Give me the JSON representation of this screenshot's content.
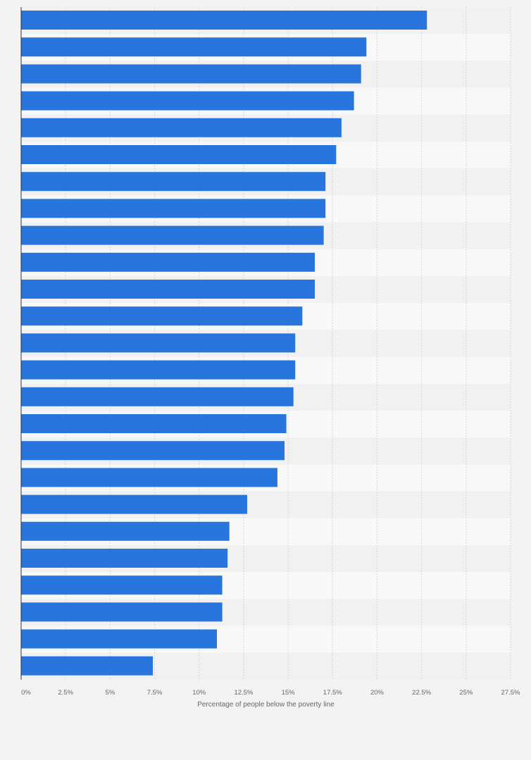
{
  "chart_data": {
    "type": "bar",
    "orientation": "horizontal",
    "values": [
      22.8,
      19.4,
      19.1,
      18.7,
      18.0,
      17.7,
      17.1,
      17.1,
      17.0,
      16.5,
      16.5,
      15.8,
      15.4,
      15.4,
      15.3,
      14.9,
      14.8,
      14.4,
      12.7,
      11.7,
      11.6,
      11.3,
      11.3,
      11.0,
      7.4
    ],
    "xlabel": "Percentage of people below the poverty line",
    "xlim": [
      0,
      27.5
    ],
    "xticks": [
      {
        "value": 0,
        "label": "0%"
      },
      {
        "value": 2.5,
        "label": "2.5%"
      },
      {
        "value": 5,
        "label": "5%"
      },
      {
        "value": 7.5,
        "label": "7.5%"
      },
      {
        "value": 10,
        "label": "10%"
      },
      {
        "value": 12.5,
        "label": "12.5%"
      },
      {
        "value": 15,
        "label": "15%"
      },
      {
        "value": 17.5,
        "label": "17.5%"
      },
      {
        "value": 20,
        "label": "20%"
      },
      {
        "value": 22.5,
        "label": "22.5%"
      },
      {
        "value": 25,
        "label": "25%"
      },
      {
        "value": 27.5,
        "label": "27.5%"
      }
    ],
    "grid": true,
    "colors": {
      "bar": "#2876dd",
      "band_dark": "#f1f1f1",
      "band_light": "#f8f8f8",
      "grid": "#d6d6d6",
      "axis": "#333333"
    }
  }
}
